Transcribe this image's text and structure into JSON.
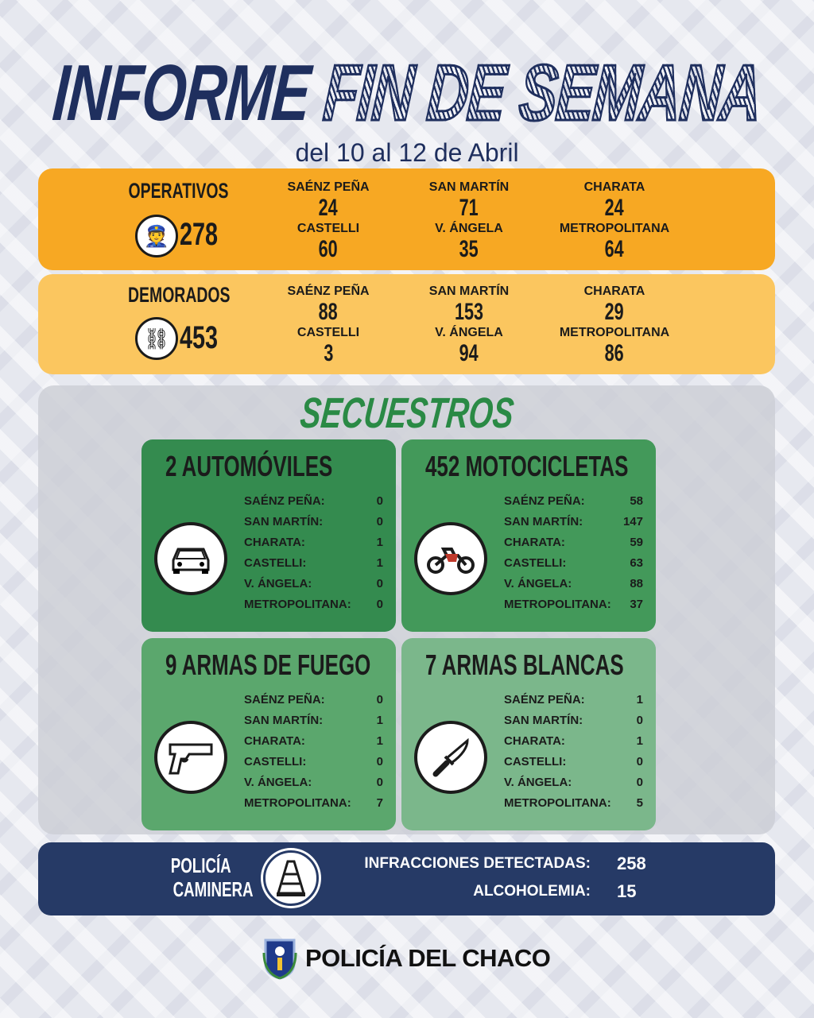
{
  "header": {
    "title_part1": "INFORME",
    "title_part2": "FIN DE SEMANA",
    "subtitle": "del 10 al 12 de Abril"
  },
  "operativos": {
    "label": "OPERATIVOS",
    "icon": "police-officer-icon",
    "total": "278",
    "regions": [
      {
        "name": "SAÉNZ PEÑA",
        "value": "24"
      },
      {
        "name": "SAN MARTÍN",
        "value": "71"
      },
      {
        "name": "CHARATA",
        "value": "24"
      },
      {
        "name": "CASTELLI",
        "value": "60"
      },
      {
        "name": "V. ÁNGELA",
        "value": "35"
      },
      {
        "name": "METROPOLITANA",
        "value": "64"
      }
    ]
  },
  "demorados": {
    "label": "DEMORADOS",
    "icon": "handcuffs-icon",
    "total": "453",
    "regions": [
      {
        "name": "SAÉNZ PEÑA",
        "value": "88"
      },
      {
        "name": "SAN MARTÍN",
        "value": "153"
      },
      {
        "name": "CHARATA",
        "value": "29"
      },
      {
        "name": "CASTELLI",
        "value": "3"
      },
      {
        "name": "V. ÁNGELA",
        "value": "94"
      },
      {
        "name": "METROPOLITANA",
        "value": "86"
      }
    ]
  },
  "secuestros": {
    "title": "SECUESTROS",
    "cards": [
      {
        "title": "2 AUTOMÓVILES",
        "icon": "car-icon",
        "color": "#348b4f",
        "rows": [
          {
            "label": "SAÉNZ PEÑA:",
            "value": "0"
          },
          {
            "label": "SAN MARTÍN:",
            "value": "0"
          },
          {
            "label": "CHARATA:",
            "value": "1"
          },
          {
            "label": "CASTELLI:",
            "value": "1"
          },
          {
            "label": "V. ÁNGELA:",
            "value": "0"
          },
          {
            "label": "METROPOLITANA:",
            "value": "0"
          }
        ]
      },
      {
        "title": "452 MOTOCICLETAS",
        "icon": "motorcycle-icon",
        "color": "#43995a",
        "rows": [
          {
            "label": "SAÉNZ PEÑA:",
            "value": "58"
          },
          {
            "label": "SAN MARTÍN:",
            "value": "147"
          },
          {
            "label": "CHARATA:",
            "value": "59"
          },
          {
            "label": "CASTELLI:",
            "value": "63"
          },
          {
            "label": "V. ÁNGELA:",
            "value": "88"
          },
          {
            "label": "METROPOLITANA:",
            "value": "37"
          }
        ]
      },
      {
        "title": "9 ARMAS DE FUEGO",
        "icon": "pistol-icon",
        "color": "#5ba76d",
        "rows": [
          {
            "label": "SAÉNZ PEÑA:",
            "value": "0"
          },
          {
            "label": "SAN MARTÍN:",
            "value": "1"
          },
          {
            "label": "CHARATA:",
            "value": "1"
          },
          {
            "label": "CASTELLI:",
            "value": "0"
          },
          {
            "label": "V. ÁNGELA:",
            "value": "0"
          },
          {
            "label": "METROPOLITANA:",
            "value": "7"
          }
        ]
      },
      {
        "title": "7 ARMAS BLANCAS",
        "icon": "knife-icon",
        "color": "#7bb78b",
        "rows": [
          {
            "label": "SAÉNZ PEÑA:",
            "value": "1"
          },
          {
            "label": "SAN MARTÍN:",
            "value": "0"
          },
          {
            "label": "CHARATA:",
            "value": "1"
          },
          {
            "label": "CASTELLI:",
            "value": "0"
          },
          {
            "label": "V. ÁNGELA:",
            "value": "0"
          },
          {
            "label": "METROPOLITANA:",
            "value": "5"
          }
        ]
      }
    ]
  },
  "caminera": {
    "label_line1": "POLICÍA",
    "label_line2": "CAMINERA",
    "icon": "traffic-cone-icon",
    "metrics": [
      {
        "label": "INFRACCIONES DETECTADAS:",
        "value": "258"
      },
      {
        "label": "ALCOHOLEMIA:",
        "value": "15"
      }
    ]
  },
  "footer": {
    "brand": "POLICÍA DEL CHACO",
    "logo": "police-shield-logo"
  },
  "colors": {
    "navy": "#1f2f5e",
    "orange": "#f7a823",
    "yellow": "#fbc65f",
    "green": "#2a8a45"
  }
}
